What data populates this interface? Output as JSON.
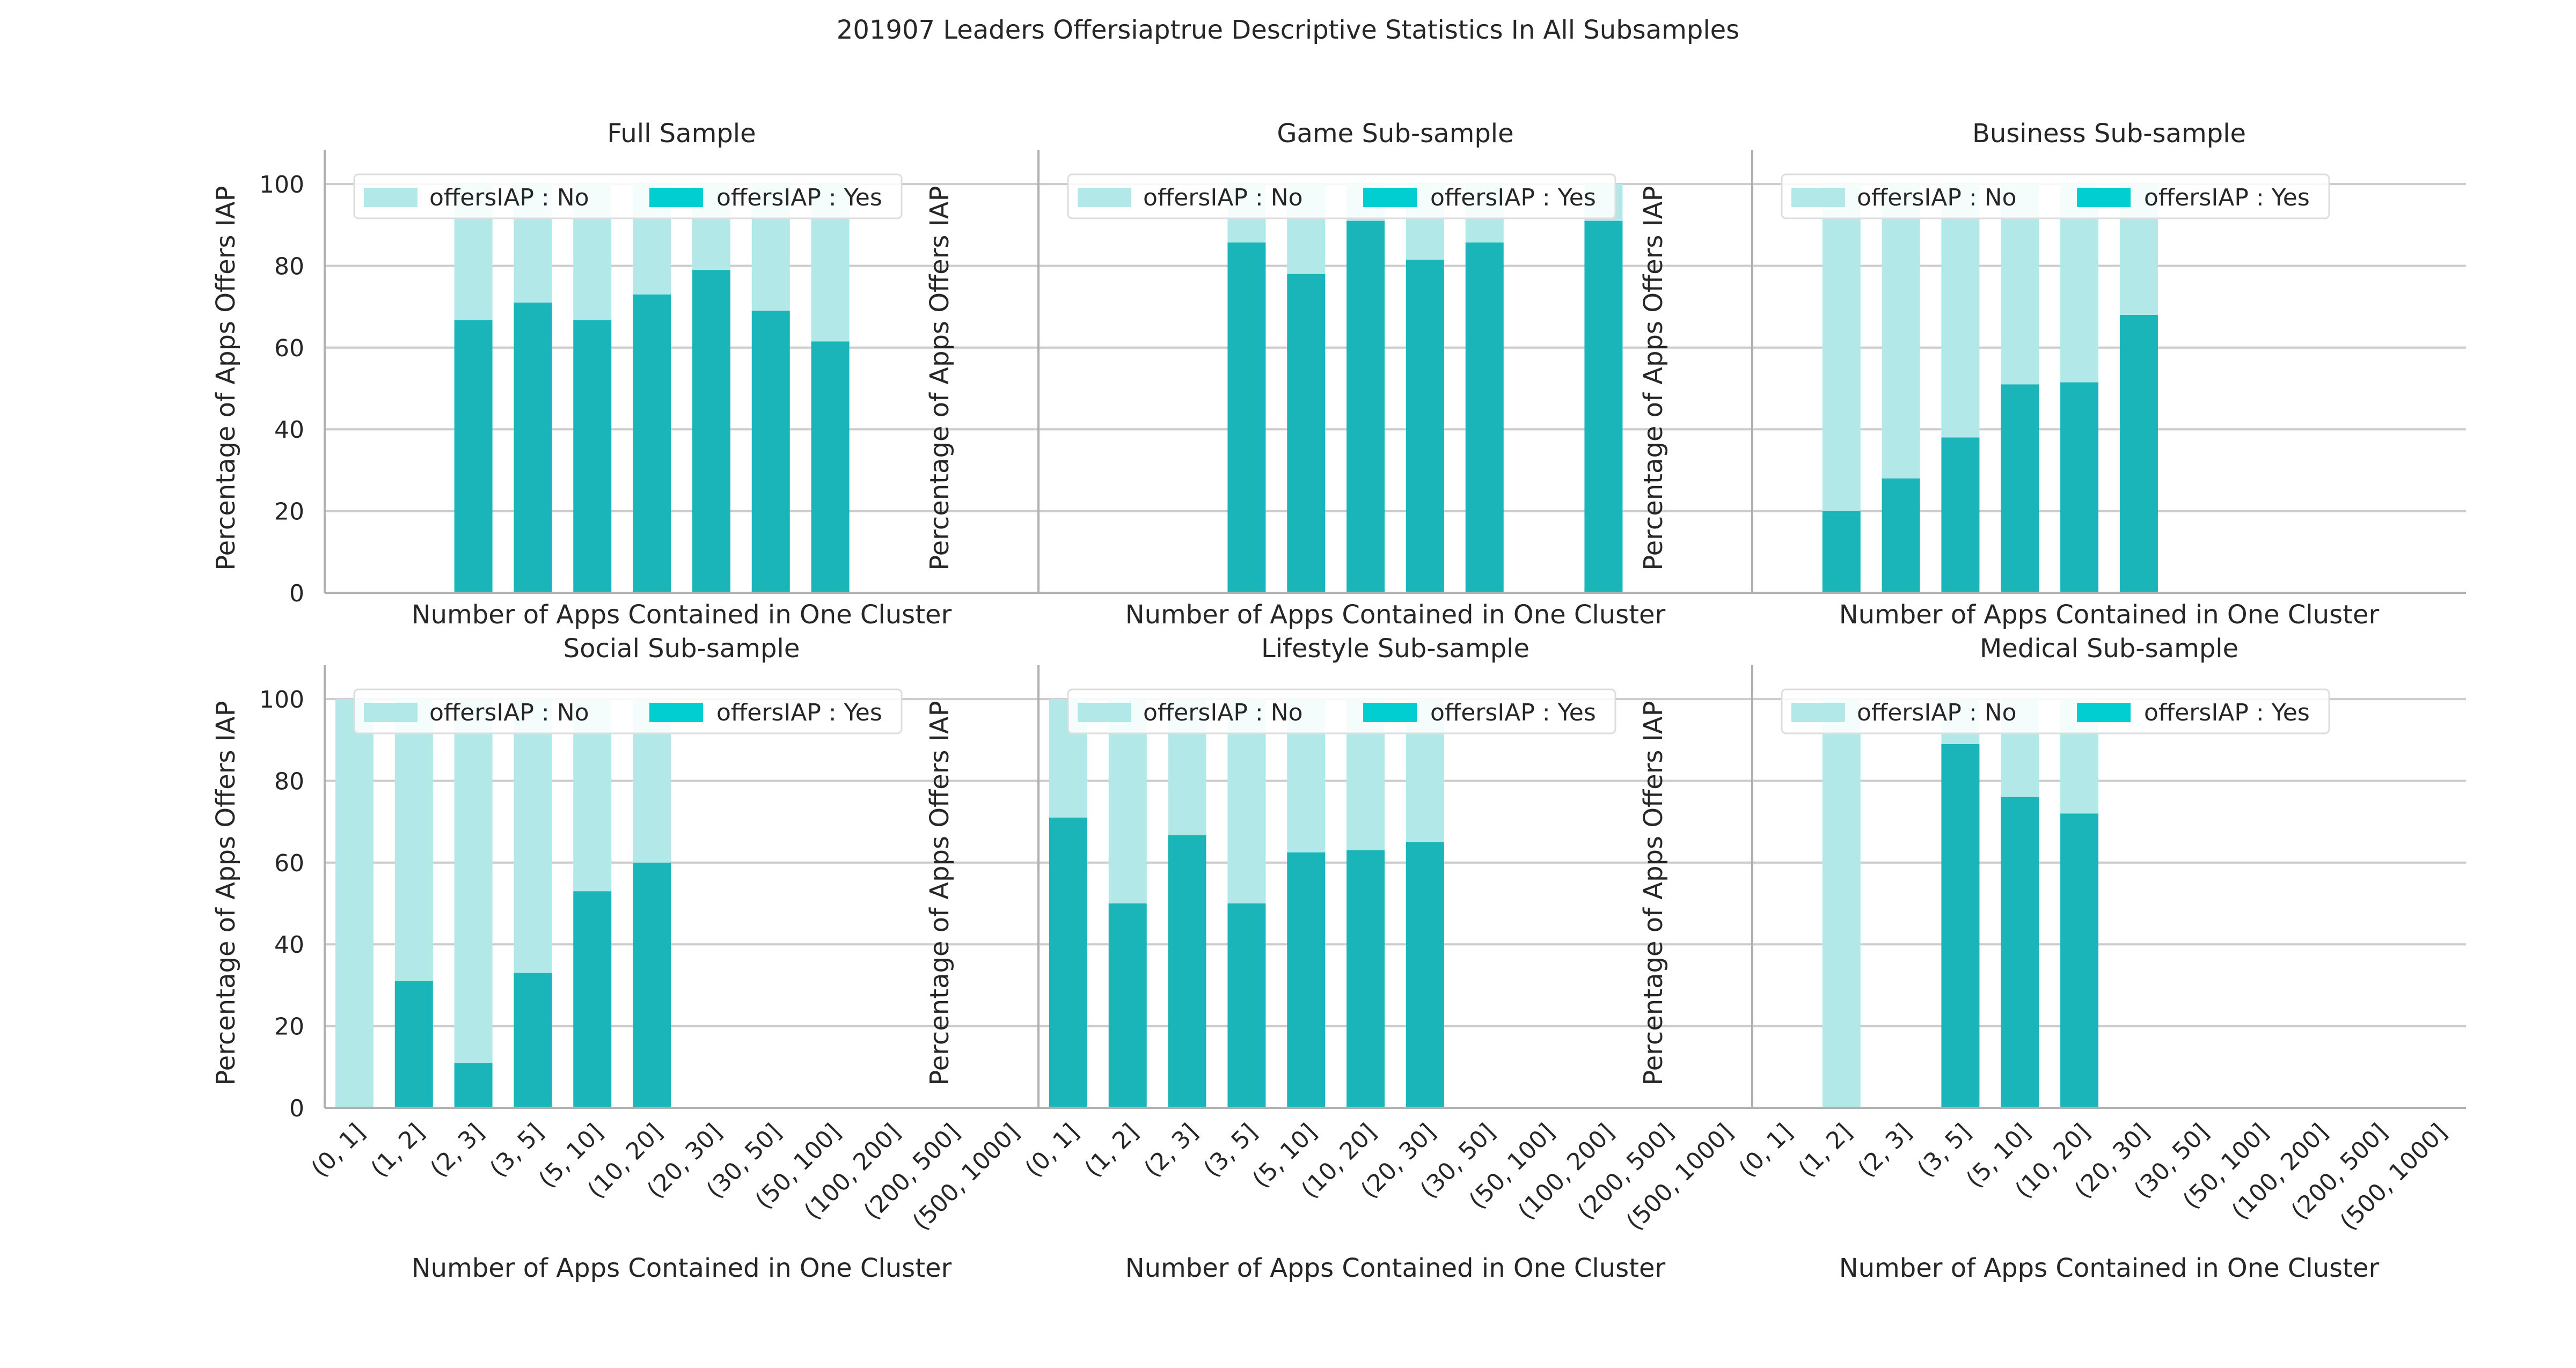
{
  "figure": {
    "title": "201907 Leaders Offersiaptrue Descriptive Statistics In All Subsamples"
  },
  "chart_data": [
    {
      "type": "bar",
      "stacked": true,
      "title": "Full Sample",
      "xlabel": "Number of Apps Contained in One Cluster",
      "ylabel": "Percentage of Apps Offers IAP",
      "ylim": [
        0,
        105
      ],
      "yticks": [
        0,
        20,
        40,
        60,
        80,
        100
      ],
      "show_x_ticklabels": false,
      "show_y_ticklabels": true,
      "grid": "horizontal",
      "legend_position": "top-center",
      "categories": [
        "(0, 1]",
        "(1, 2]",
        "(2, 3]",
        "(3, 5]",
        "(5, 10]",
        "(10, 20]",
        "(20, 30]",
        "(30, 50]",
        "(50, 100]",
        "(100, 200]",
        "(200, 500]",
        "(500, 1000]"
      ],
      "series": [
        {
          "name": "offersIAP : No",
          "color": "#b3e8e8",
          "values": [
            null,
            null,
            33.3,
            29,
            33.3,
            27,
            21,
            31,
            38.5,
            null,
            null,
            null
          ]
        },
        {
          "name": "offersIAP : Yes",
          "color": "#1ab5b8",
          "legend_color": "#00ced1",
          "values": [
            null,
            null,
            66.7,
            71,
            66.7,
            73,
            79,
            69,
            61.5,
            null,
            null,
            null
          ]
        }
      ]
    },
    {
      "type": "bar",
      "stacked": true,
      "title": "Game Sub-sample",
      "xlabel": "Number of Apps Contained in One Cluster",
      "ylabel": "Percentage of Apps Offers IAP",
      "ylim": [
        0,
        105
      ],
      "yticks": [
        0,
        20,
        40,
        60,
        80,
        100
      ],
      "show_x_ticklabels": false,
      "show_y_ticklabels": false,
      "grid": "horizontal",
      "legend_position": "top-center",
      "categories": [
        "(0, 1]",
        "(1, 2]",
        "(2, 3]",
        "(3, 5]",
        "(5, 10]",
        "(10, 20]",
        "(20, 30]",
        "(30, 50]",
        "(50, 100]",
        "(100, 200]",
        "(200, 500]",
        "(500, 1000]"
      ],
      "series": [
        {
          "name": "offersIAP : No",
          "color": "#b3e8e8",
          "values": [
            null,
            null,
            null,
            14.3,
            22,
            9,
            18.5,
            14.3,
            null,
            9,
            null,
            null
          ]
        },
        {
          "name": "offersIAP : Yes",
          "color": "#1ab5b8",
          "legend_color": "#00ced1",
          "values": [
            null,
            null,
            null,
            85.7,
            78,
            91,
            81.5,
            85.7,
            null,
            91,
            null,
            null
          ]
        }
      ]
    },
    {
      "type": "bar",
      "stacked": true,
      "title": "Business Sub-sample",
      "xlabel": "Number of Apps Contained in One Cluster",
      "ylabel": "Percentage of Apps Offers IAP",
      "ylim": [
        0,
        105
      ],
      "yticks": [
        0,
        20,
        40,
        60,
        80,
        100
      ],
      "show_x_ticklabels": false,
      "show_y_ticklabels": false,
      "grid": "horizontal",
      "legend_position": "top-center",
      "categories": [
        "(0, 1]",
        "(1, 2]",
        "(2, 3]",
        "(3, 5]",
        "(5, 10]",
        "(10, 20]",
        "(20, 30]",
        "(30, 50]",
        "(50, 100]",
        "(100, 200]",
        "(200, 500]",
        "(500, 1000]"
      ],
      "series": [
        {
          "name": "offersIAP : No",
          "color": "#b3e8e8",
          "values": [
            null,
            80,
            72,
            62,
            49,
            48.5,
            32,
            null,
            null,
            null,
            null,
            null
          ]
        },
        {
          "name": "offersIAP : Yes",
          "color": "#1ab5b8",
          "legend_color": "#00ced1",
          "values": [
            null,
            20,
            28,
            38,
            51,
            51.5,
            68,
            null,
            null,
            null,
            null,
            null
          ]
        }
      ]
    },
    {
      "type": "bar",
      "stacked": true,
      "title": "Social Sub-sample",
      "xlabel": "Number of Apps Contained in One Cluster",
      "ylabel": "Percentage of Apps Offers IAP",
      "ylim": [
        0,
        105
      ],
      "yticks": [
        0,
        20,
        40,
        60,
        80,
        100
      ],
      "show_x_ticklabels": true,
      "show_y_ticklabels": true,
      "grid": "horizontal",
      "legend_position": "top-center",
      "categories": [
        "(0, 1]",
        "(1, 2]",
        "(2, 3]",
        "(3, 5]",
        "(5, 10]",
        "(10, 20]",
        "(20, 30]",
        "(30, 50]",
        "(50, 100]",
        "(100, 200]",
        "(200, 500]",
        "(500, 1000]"
      ],
      "series": [
        {
          "name": "offersIAP : No",
          "color": "#b3e8e8",
          "values": [
            100,
            69,
            89,
            67,
            47,
            40,
            null,
            null,
            null,
            null,
            null,
            null
          ]
        },
        {
          "name": "offersIAP : Yes",
          "color": "#1ab5b8",
          "legend_color": "#00ced1",
          "values": [
            0,
            31,
            11,
            33,
            53,
            60,
            null,
            null,
            null,
            null,
            null,
            null
          ]
        }
      ]
    },
    {
      "type": "bar",
      "stacked": true,
      "title": "Lifestyle Sub-sample",
      "xlabel": "Number of Apps Contained in One Cluster",
      "ylabel": "Percentage of Apps Offers IAP",
      "ylim": [
        0,
        105
      ],
      "yticks": [
        0,
        20,
        40,
        60,
        80,
        100
      ],
      "show_x_ticklabels": true,
      "show_y_ticklabels": false,
      "grid": "horizontal",
      "legend_position": "top-center",
      "categories": [
        "(0, 1]",
        "(1, 2]",
        "(2, 3]",
        "(3, 5]",
        "(5, 10]",
        "(10, 20]",
        "(20, 30]",
        "(30, 50]",
        "(50, 100]",
        "(100, 200]",
        "(200, 500]",
        "(500, 1000]"
      ],
      "series": [
        {
          "name": "offersIAP : No",
          "color": "#b3e8e8",
          "values": [
            29,
            50,
            33.3,
            50,
            37.5,
            37,
            35,
            null,
            null,
            null,
            null,
            null
          ]
        },
        {
          "name": "offersIAP : Yes",
          "color": "#1ab5b8",
          "legend_color": "#00ced1",
          "values": [
            71,
            50,
            66.7,
            50,
            62.5,
            63,
            65,
            null,
            null,
            null,
            null,
            null
          ]
        }
      ]
    },
    {
      "type": "bar",
      "stacked": true,
      "title": "Medical Sub-sample",
      "xlabel": "Number of Apps Contained in One Cluster",
      "ylabel": "Percentage of Apps Offers IAP",
      "ylim": [
        0,
        105
      ],
      "yticks": [
        0,
        20,
        40,
        60,
        80,
        100
      ],
      "show_x_ticklabels": true,
      "show_y_ticklabels": false,
      "grid": "horizontal",
      "legend_position": "top-center",
      "categories": [
        "(0, 1]",
        "(1, 2]",
        "(2, 3]",
        "(3, 5]",
        "(5, 10]",
        "(10, 20]",
        "(20, 30]",
        "(30, 50]",
        "(50, 100]",
        "(100, 200]",
        "(200, 500]",
        "(500, 1000]"
      ],
      "series": [
        {
          "name": "offersIAP : No",
          "color": "#b3e8e8",
          "values": [
            null,
            100,
            null,
            11,
            24,
            28,
            null,
            null,
            null,
            null,
            null,
            null
          ]
        },
        {
          "name": "offersIAP : Yes",
          "color": "#1ab5b8",
          "legend_color": "#00ced1",
          "values": [
            null,
            0,
            null,
            89,
            76,
            72,
            null,
            null,
            null,
            null,
            null,
            null
          ]
        }
      ]
    }
  ]
}
